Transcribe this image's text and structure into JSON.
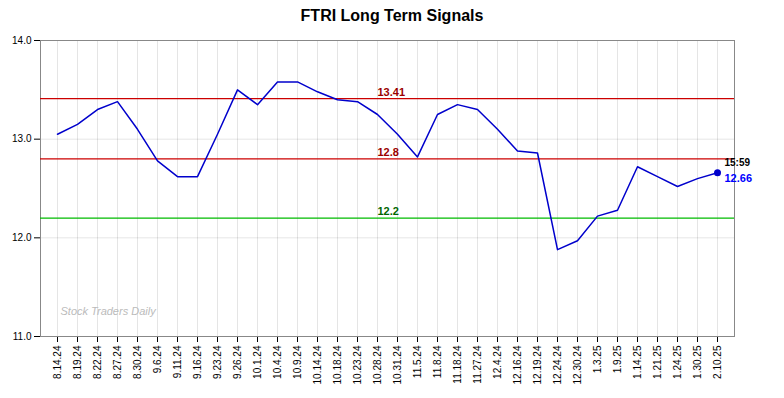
{
  "chart_data": {
    "type": "line",
    "title": "FTRI Long Term Signals",
    "categories": [
      "8.14.24",
      "8.19.24",
      "8.22.24",
      "8.27.24",
      "8.30.24",
      "9.6.24",
      "9.11.24",
      "9.16.24",
      "9.23.24",
      "9.26.24",
      "10.1.24",
      "10.4.24",
      "10.9.24",
      "10.14.24",
      "10.18.24",
      "10.23.24",
      "10.28.24",
      "10.31.24",
      "11.5.24",
      "11.8.24",
      "11.18.24",
      "11.27.24",
      "12.4.24",
      "12.16.24",
      "12.19.24",
      "12.24.24",
      "12.30.24",
      "1.3.25",
      "1.9.25",
      "1.14.25",
      "1.21.25",
      "1.24.25",
      "1.30.25",
      "2.10.25"
    ],
    "values": [
      13.05,
      13.15,
      13.3,
      13.38,
      13.1,
      12.78,
      12.62,
      12.62,
      13.05,
      13.5,
      13.35,
      13.58,
      13.58,
      13.48,
      13.4,
      13.38,
      13.25,
      13.05,
      12.82,
      13.25,
      13.35,
      13.3,
      13.1,
      12.88,
      12.86,
      11.88,
      11.97,
      12.22,
      12.28,
      12.72,
      12.62,
      12.52,
      12.6,
      12.66
    ],
    "color": "#0000cc",
    "ylim": [
      11.0,
      14.0
    ],
    "yticks": [
      11,
      12,
      13,
      14
    ],
    "grid": true,
    "hlines": [
      {
        "value": 13.41,
        "label": "13.41",
        "color": "#cc0000",
        "label_color": "#990000",
        "label_x": "10.28.24"
      },
      {
        "value": 12.8,
        "label": "12.8",
        "color": "#cc0000",
        "label_color": "#990000",
        "label_x": "10.28.24"
      },
      {
        "value": 12.2,
        "label": "12.2",
        "color": "#00bb00",
        "label_color": "#006600",
        "label_x": "10.28.24"
      }
    ],
    "annotations": [
      {
        "x": "2.10.25",
        "y": 12.66,
        "text": "15:59",
        "color": "black"
      },
      {
        "x": "2.10.25",
        "y": 12.66,
        "text": "12.66",
        "color": "blue",
        "marker": "circle"
      }
    ],
    "watermark": "Stock Traders Daily"
  }
}
